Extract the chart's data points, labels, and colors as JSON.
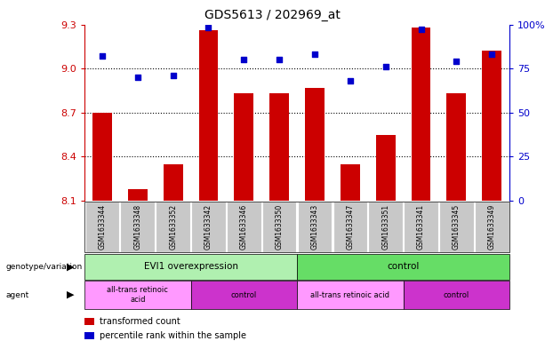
{
  "title": "GDS5613 / 202969_at",
  "samples": [
    "GSM1633344",
    "GSM1633348",
    "GSM1633352",
    "GSM1633342",
    "GSM1633346",
    "GSM1633350",
    "GSM1633343",
    "GSM1633347",
    "GSM1633351",
    "GSM1633341",
    "GSM1633345",
    "GSM1633349"
  ],
  "bar_values": [
    8.7,
    8.18,
    8.35,
    9.26,
    8.83,
    8.83,
    8.87,
    8.35,
    8.55,
    9.28,
    8.83,
    9.12
  ],
  "bar_base": 8.1,
  "percentile_values": [
    82,
    70,
    71,
    98,
    80,
    80,
    83,
    68,
    76,
    97,
    79,
    83
  ],
  "bar_color": "#cc0000",
  "percentile_color": "#0000cc",
  "ylim_left": [
    8.1,
    9.3
  ],
  "ylim_right": [
    0,
    100
  ],
  "yticks_left": [
    8.1,
    8.4,
    8.7,
    9.0,
    9.3
  ],
  "yticks_right": [
    0,
    25,
    50,
    75,
    100
  ],
  "ytick_labels_right": [
    "0",
    "25",
    "50",
    "75",
    "100%"
  ],
  "grid_values": [
    9.0,
    8.7,
    8.4
  ],
  "tick_bg_color": "#c8c8c8",
  "genotype_groups": [
    {
      "label": "EVI1 overexpression",
      "start": 0,
      "end": 6,
      "color": "#b0f0b0"
    },
    {
      "label": "control",
      "start": 6,
      "end": 12,
      "color": "#66dd66"
    }
  ],
  "agent_groups": [
    {
      "label": "all-trans retinoic\nacid",
      "start": 0,
      "end": 3,
      "color": "#ff88ff"
    },
    {
      "label": "control",
      "start": 3,
      "end": 6,
      "color": "#ee44ee"
    },
    {
      "label": "all-trans retinoic acid",
      "start": 6,
      "end": 9,
      "color": "#ff88ff"
    },
    {
      "label": "control",
      "start": 9,
      "end": 12,
      "color": "#ee44ee"
    }
  ]
}
